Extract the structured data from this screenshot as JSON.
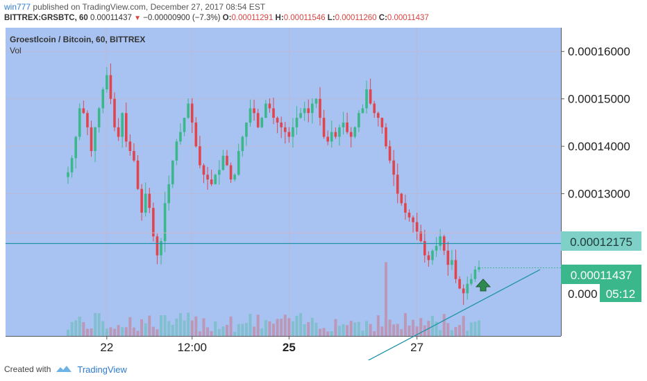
{
  "header": {
    "user": "win777",
    "published": "published on TradingView.com, December 27, 2017 08:54 EST",
    "symbol": "BITTREX:GRSBTC, 60",
    "last": "0.00011437",
    "change_arrow": "▼",
    "change": "−0.00000900 (−7.3%)",
    "o_label": "O:",
    "o_value": "0.00011291",
    "h_label": "H:",
    "h_value": "0.00011546",
    "l_label": "L:",
    "l_value": "0.00011260",
    "c_label": "C:",
    "c_value": "0.00011437"
  },
  "legend": {
    "title": "Groestlcoin / Bitcoin, 60, BITTREX",
    "vol": "Vol"
  },
  "price_labels": {
    "alert_level": "0.00012175",
    "last_price": "0.00011437",
    "trend_level": "0.000",
    "countdown": "05:12"
  },
  "footer": {
    "created_with": "Created with",
    "brand": "TradingView"
  },
  "colors": {
    "background": "#a8c3f1",
    "up": "#3ab78b",
    "down": "#e0454e",
    "line": "#1e93a8",
    "alert_label_bg": "#7fd0c6",
    "last_label_bg": "#3ab78b",
    "arrow": "#2f8a4f"
  },
  "icons": [
    "up-arrow-icon",
    "tradingview-logo-icon"
  ],
  "chart_data": {
    "type": "candlestick",
    "title": "Groestlcoin / Bitcoin, 60, BITTREX",
    "x_ticks": [
      "22",
      "12:00",
      "25",
      "27"
    ],
    "y_ticks": [
      "0.00016000",
      "0.00015000",
      "0.00014000",
      "0.00013000"
    ],
    "ylim": [
      0.0001,
      0.000165
    ],
    "grid": true,
    "horizontal_level": 0.0001195,
    "alert_level": 0.00012175,
    "last_price": 0.00011437,
    "trendline": {
      "from": 9.25e-05,
      "to": 0.000114
    },
    "close_path": [
      0.0001345,
      0.0001375,
      0.000142,
      0.000148,
      0.000147,
      0.000144,
      0.000139,
      0.000144,
      0.000148,
      0.000152,
      0.000155,
      0.00015,
      0.000144,
      0.000142,
      0.000147,
      0.000141,
      0.000139,
      0.000137,
      0.000131,
      0.000126,
      0.00013,
      0.000127,
      0.000121,
      0.000117,
      0.00012,
      0.000128,
      0.000132,
      0.000137,
      0.000141,
      0.000143,
      0.000146,
      0.000149,
      0.000145,
      0.00014,
      0.000136,
      0.000134,
      0.000133,
      0.000132,
      0.000134,
      0.000135,
      0.000138,
      0.000136,
      0.000133,
      0.000134,
      0.000139,
      0.000142,
      0.000145,
      0.000148,
      0.000147,
      0.000144,
      0.000146,
      0.000149,
      0.000148,
      0.000146,
      0.000145,
      0.000144,
      0.000143,
      0.000142,
      0.000144,
      0.000146,
      0.000147,
      0.000148,
      0.000147,
      0.000149,
      0.00015,
      0.000146,
      0.000142,
      0.000141,
      0.000143,
      0.000142,
      0.000144,
      0.000145,
      0.000143,
      0.000142,
      0.000144,
      0.000147,
      0.000148,
      0.000152,
      0.000149,
      0.000147,
      0.000146,
      0.000144,
      0.00014,
      0.000137,
      0.000134,
      0.00013,
      0.000128,
      0.000126,
      0.000125,
      0.000124,
      0.000122,
      0.00012,
      0.000117,
      0.000116,
      0.000118,
      0.000119,
      0.000121,
      0.000118,
      0.000115,
      0.000116,
      0.000112,
      0.00011,
      0.000109,
      0.000111,
      0.000112,
      0.000114,
      0.0001145
    ]
  }
}
